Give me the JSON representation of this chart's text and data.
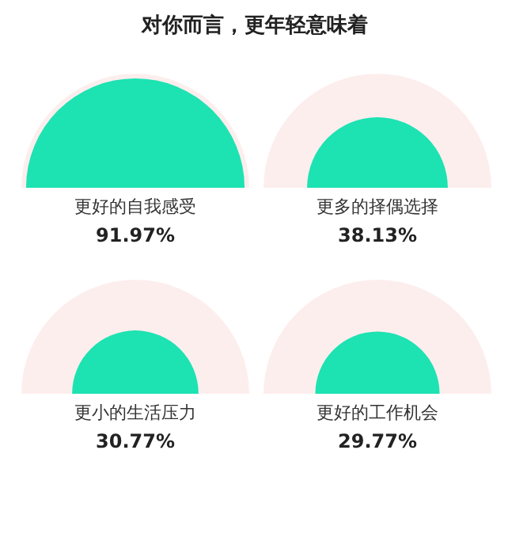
{
  "chart_data": {
    "type": "other",
    "title": "对你而言，更年轻意味着",
    "categories": [
      "更好的自我感受",
      "更多的择偶选择",
      "更小的生活压力",
      "更好的工作机会"
    ],
    "values": [
      91.97,
      38.13,
      30.77,
      29.77
    ],
    "value_labels": [
      "91.97%",
      "38.13%",
      "30.77%",
      "29.77%"
    ],
    "colors": [
      "#1de2b2",
      "#1de2b2",
      "#1de2b2",
      "#1de2b2"
    ]
  }
}
